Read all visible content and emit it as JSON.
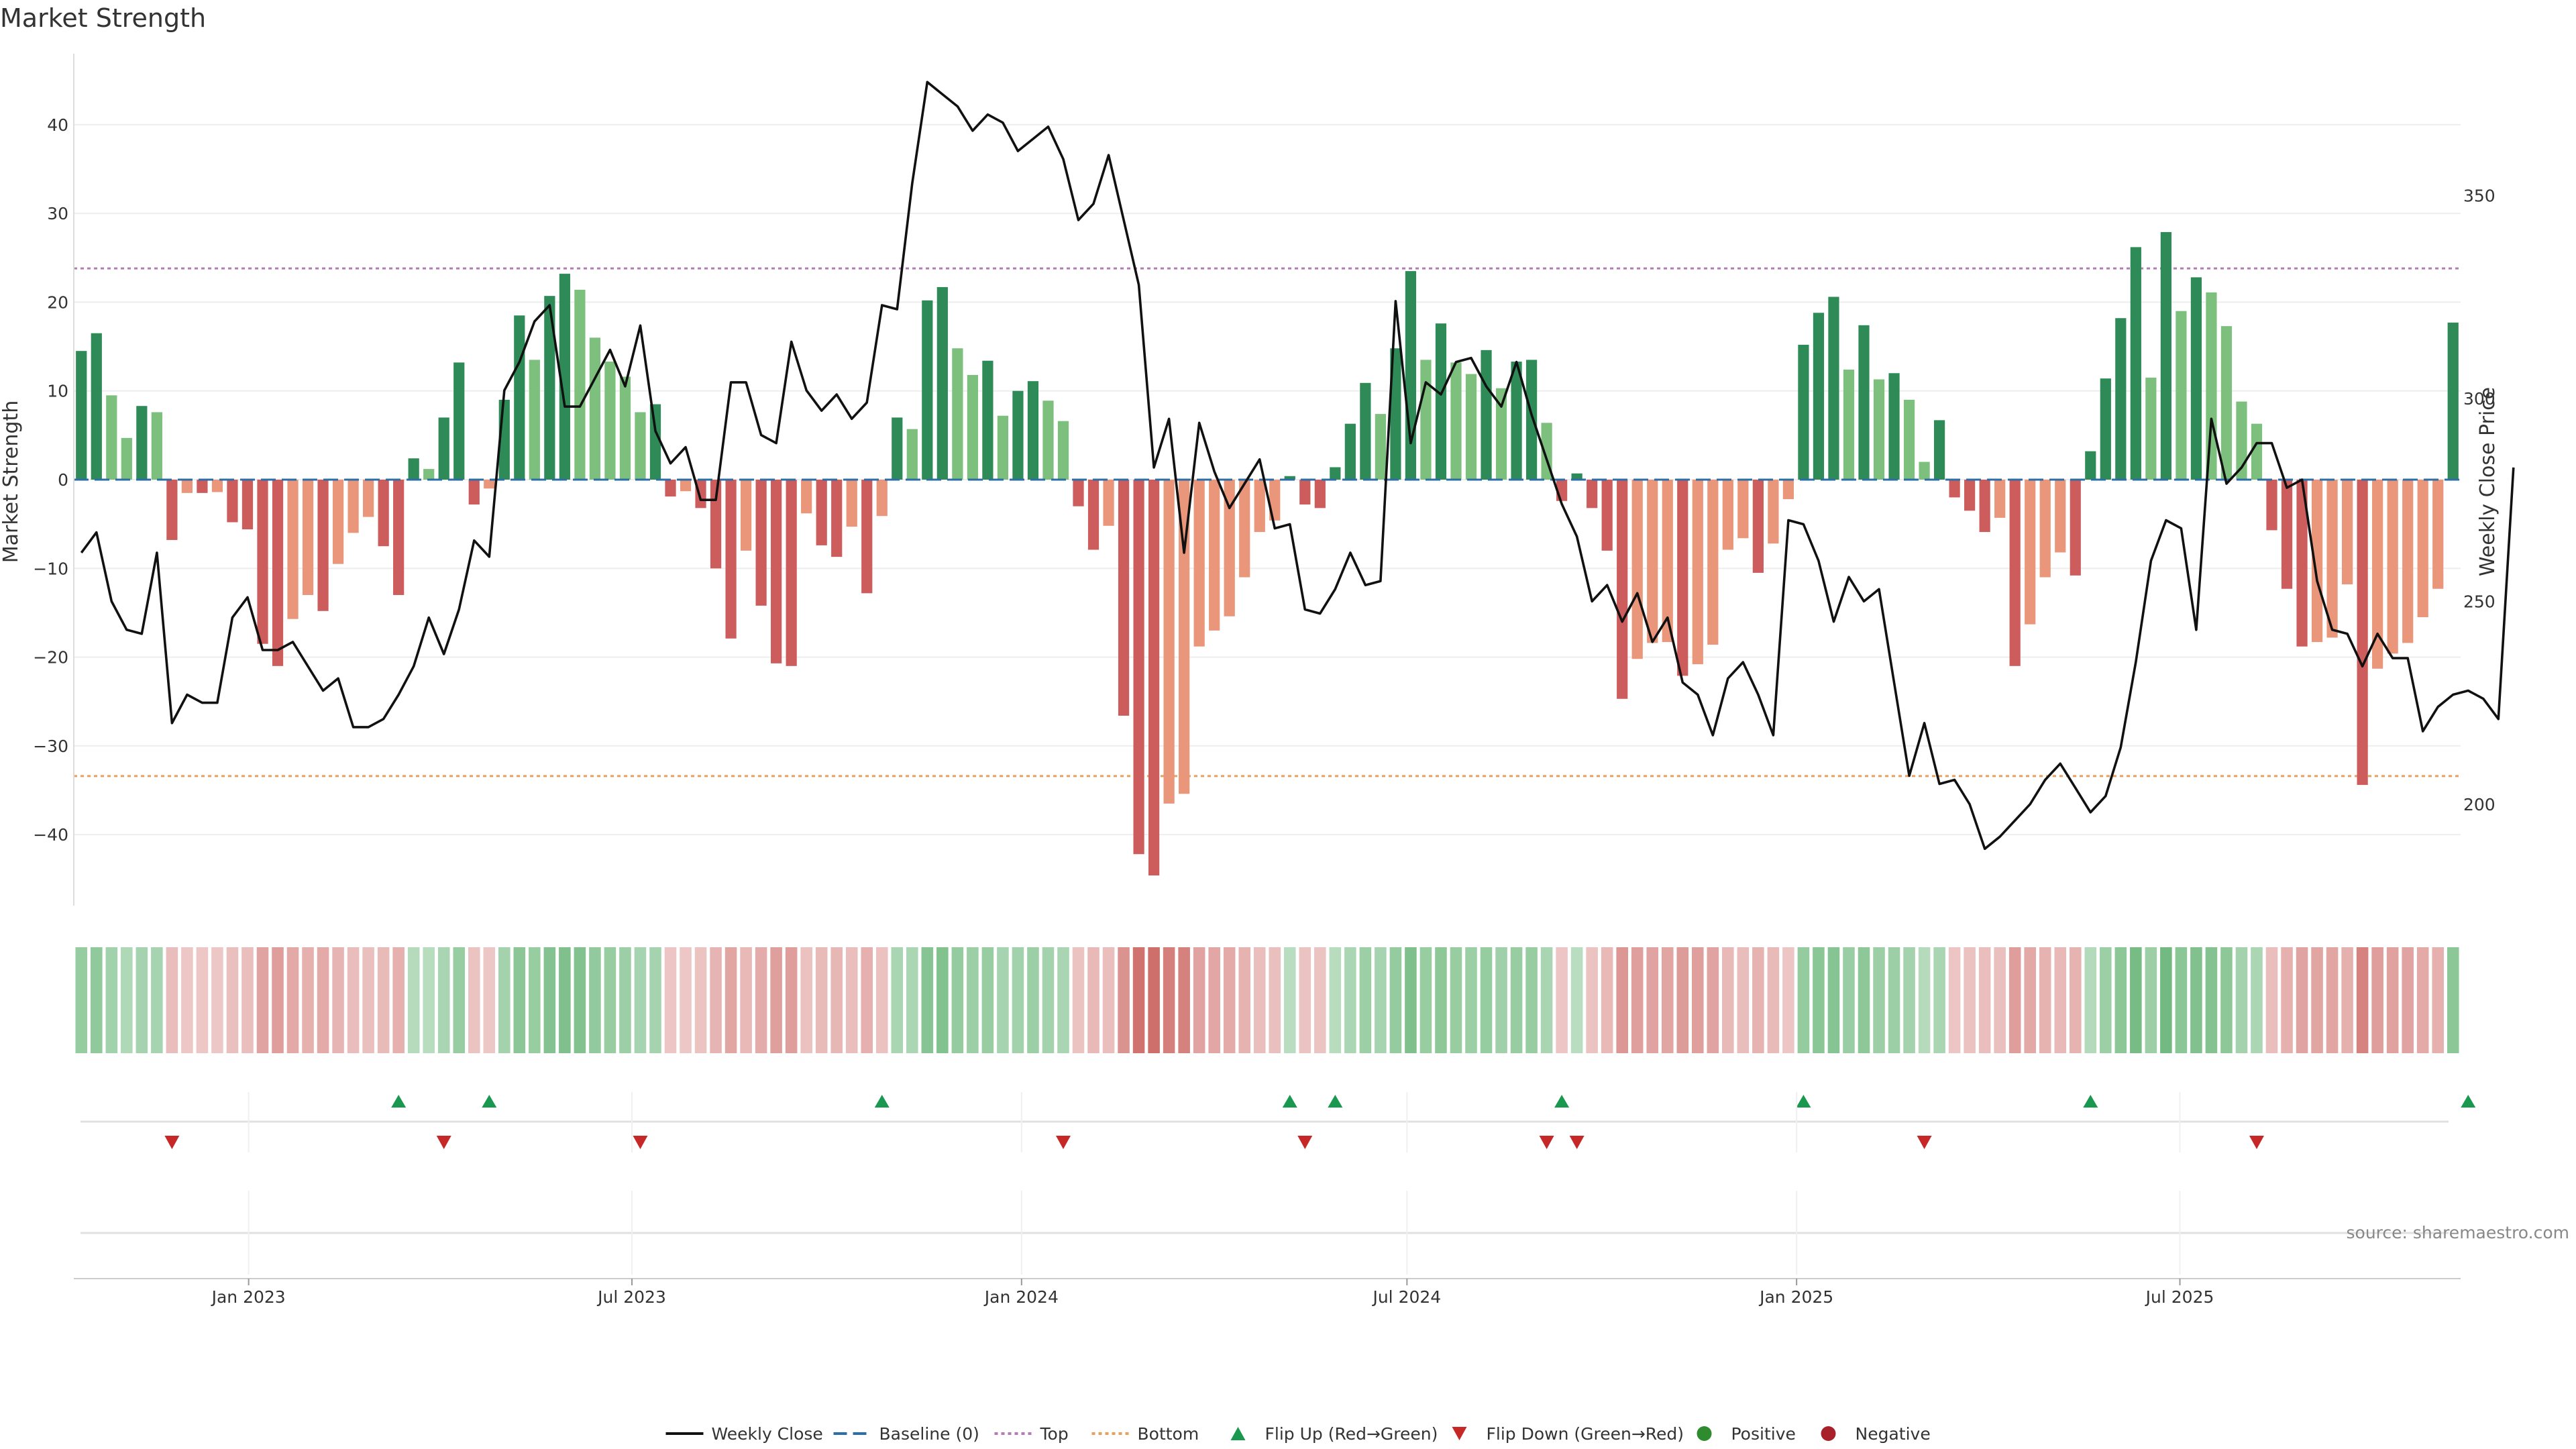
{
  "chart_data": {
    "type": "bar",
    "title": "Market Strength",
    "ylabel": "Market Strength",
    "y2label": "Weekly Close Price",
    "ylim": [
      -48,
      48
    ],
    "y2lim": [
      175,
      385
    ],
    "yticks": [
      40,
      30,
      20,
      10,
      0,
      -10,
      -20,
      -30,
      -40
    ],
    "y2ticks": [
      350,
      300,
      250,
      200
    ],
    "top_threshold": 23.8,
    "bottom_threshold": -33.4,
    "start_date": "2022-10-14",
    "end_date": "2025-11-07",
    "x_ticks": [
      {
        "label": "Jan 2023",
        "date": "2023-01-01"
      },
      {
        "label": "Jul 2023",
        "date": "2023-07-01"
      },
      {
        "label": "Jan 2024",
        "date": "2024-01-01"
      },
      {
        "label": "Jul 2024",
        "date": "2024-07-01"
      },
      {
        "label": "Jan 2025",
        "date": "2025-01-01"
      },
      {
        "label": "Jul 2025",
        "date": "2025-07-01"
      }
    ],
    "strength": [
      14.5,
      16.5,
      9.5,
      4.7,
      8.3,
      7.6,
      -6.8,
      -1.5,
      -1.5,
      -1.4,
      -4.8,
      -5.6,
      -18.5,
      -21,
      -15.7,
      -13,
      -14.8,
      -9.5,
      -6,
      -4.2,
      -7.5,
      -13,
      2.4,
      1.2,
      7,
      13.2,
      -2.8,
      -1,
      9,
      18.5,
      13.5,
      20.7,
      23.2,
      21.4,
      16,
      13.3,
      11.6,
      7.6,
      8.5,
      -1.9,
      -1.3,
      -3.2,
      -10,
      -17.9,
      -8,
      -14.2,
      -20.7,
      -21,
      -3.8,
      -7.4,
      -8.7,
      -5.3,
      -12.8,
      -4.1,
      7,
      5.7,
      20.2,
      21.7,
      14.8,
      11.8,
      13.4,
      7.2,
      10,
      11.1,
      8.9,
      6.6,
      -3,
      -7.9,
      -5.2,
      -26.6,
      -42.2,
      -44.6,
      -36.5,
      -35.4,
      -18.8,
      -17,
      -15.4,
      -11,
      -5.9,
      -4.6,
      0.4,
      -2.8,
      -3.2,
      1.4,
      6.3,
      10.9,
      7.4,
      14.8,
      23.5,
      13.5,
      17.6,
      13.2,
      11.9,
      14.6,
      10.3,
      13.3,
      13.5,
      6.4,
      -2.4,
      0.7,
      -3.2,
      -8,
      -24.7,
      -20.2,
      -18.4,
      -18.3,
      -22.1,
      -20.8,
      -18.6,
      -7.9,
      -6.6,
      -10.5,
      -7.2,
      -2.2,
      15.2,
      18.8,
      20.6,
      12.4,
      17.4,
      11.3,
      12,
      9,
      2,
      6.7,
      -2,
      -3.5,
      -5.9,
      -4.3,
      -21,
      -16.3,
      -11,
      -8.2,
      -10.8,
      3.2,
      11.4,
      18.2,
      26.2,
      11.5,
      27.9,
      19,
      22.8,
      21.1,
      17.3,
      8.8,
      6.3,
      -5.7,
      -12.3,
      -18.8,
      -18.3,
      -17.8,
      -11.8,
      -34.4,
      -21.3,
      -19.6,
      -18.4,
      -15.5,
      -12.3,
      17.7
    ],
    "price": [
      262,
      267,
      250,
      243,
      242,
      262,
      220,
      227,
      225,
      225,
      246,
      251,
      238,
      238,
      240,
      234,
      228,
      231,
      219,
      219,
      221,
      227,
      234,
      246,
      237,
      248,
      265,
      261,
      302,
      309,
      319,
      323,
      298,
      298,
      305,
      312,
      303,
      318,
      292,
      284,
      288,
      275,
      275,
      304,
      304,
      291,
      289,
      314,
      302,
      297,
      301,
      295,
      299,
      323,
      322,
      353,
      378,
      375,
      372,
      366,
      370,
      368,
      361,
      364,
      367,
      359,
      344,
      348,
      360,
      344,
      328,
      283,
      295,
      262,
      294,
      282,
      273,
      279,
      285,
      268,
      269,
      248,
      247,
      253,
      262,
      254,
      255,
      324,
      289,
      304,
      301,
      309,
      310,
      303,
      298,
      309,
      296,
      285,
      274,
      266,
      250,
      254,
      245,
      252,
      240,
      246,
      230,
      227,
      217,
      231,
      235,
      227,
      217,
      270,
      269,
      260,
      245,
      256,
      250,
      253,
      230,
      207,
      220,
      205,
      206,
      200,
      189,
      192,
      196,
      200,
      206,
      210,
      204,
      198,
      202,
      214,
      235,
      260,
      270,
      268,
      243,
      295,
      279,
      283,
      289,
      289,
      278,
      280,
      255,
      243,
      242,
      234,
      242,
      236,
      236,
      218,
      224,
      227,
      228,
      226,
      221,
      283
    ],
    "lanes": {
      "flip_up_label": "Flip Up (Red→Green)",
      "flip_down_label": "Flip Down (Green→Red)",
      "flip_up_idx": [
        21,
        27,
        53,
        80,
        83,
        98,
        114,
        133,
        158
      ],
      "flip_down_idx": [
        6,
        24,
        37,
        65,
        81,
        97,
        99,
        122,
        144
      ]
    },
    "colors": {
      "green_strong": "#2e8b57",
      "green_light": "#7dbf7d",
      "red_strong": "#cd5c5c",
      "red_light": "#e9967a",
      "price_line": "#111111",
      "baseline": "#2c6fa8",
      "top_line": "#b57bb5",
      "bottom_line": "#e8a05c",
      "flip_up": "#1a9850",
      "flip_down": "#c62828",
      "positive": "#2e8b2e",
      "negative": "#a8202a"
    },
    "legend": [
      {
        "label": "Weekly Close",
        "kind": "line"
      },
      {
        "label": "Baseline (0)",
        "kind": "dash"
      },
      {
        "label": "Top",
        "kind": "dot-top"
      },
      {
        "label": "Bottom",
        "kind": "dot-bottom"
      },
      {
        "label": "Flip Up (Red→Green)",
        "kind": "tri-up"
      },
      {
        "label": "Flip Down (Green→Red)",
        "kind": "tri-down"
      },
      {
        "label": "Positive",
        "kind": "circle-pos"
      },
      {
        "label": "Negative",
        "kind": "circle-neg"
      }
    ],
    "legend_position": "bottom-center",
    "source": "source: sharemaestro.com"
  }
}
